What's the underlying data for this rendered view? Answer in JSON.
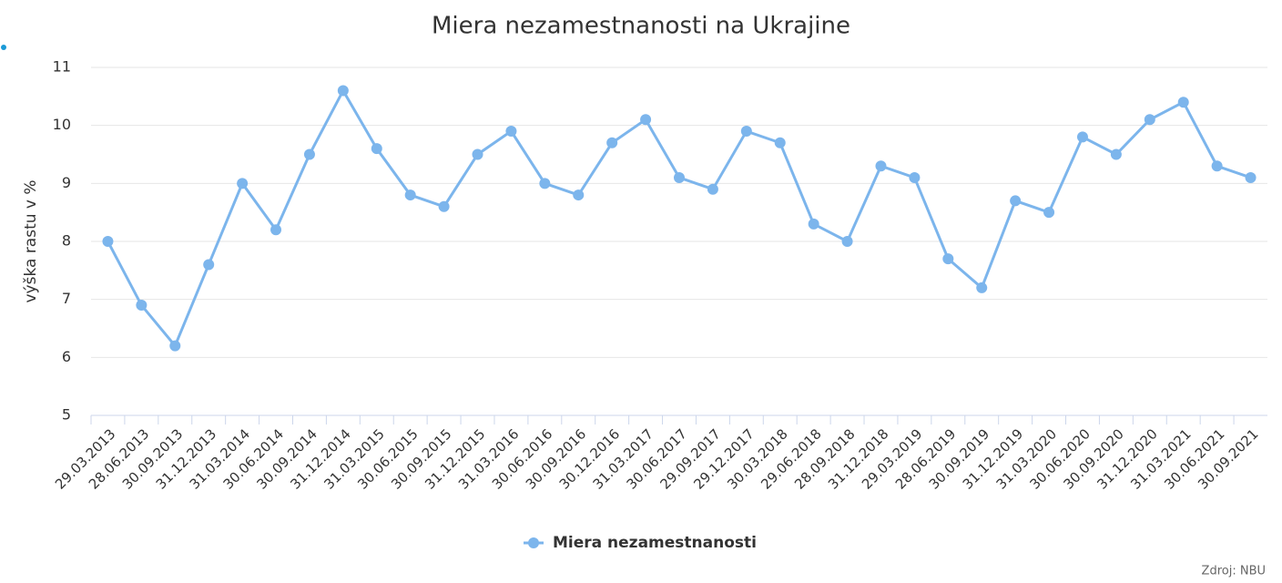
{
  "chart_data": {
    "type": "line",
    "title": "Miera nezamestnanosti na Ukrajine",
    "y_label": "výška rastu v %",
    "categories": [
      "29.03.2013",
      "28.06.2013",
      "30.09.2013",
      "31.12.2013",
      "31.03.2014",
      "30.06.2014",
      "30.09.2014",
      "31.12.2014",
      "31.03.2015",
      "30.06.2015",
      "30.09.2015",
      "31.12.2015",
      "31.03.2016",
      "30.06.2016",
      "30.09.2016",
      "30.12.2016",
      "31.03.2017",
      "30.06.2017",
      "29.09.2017",
      "29.12.2017",
      "30.03.2018",
      "29.06.2018",
      "28.09.2018",
      "31.12.2018",
      "29.03.2019",
      "28.06.2019",
      "30.09.2019",
      "31.12.2019",
      "31.03.2020",
      "30.06.2020",
      "30.09.2020",
      "31.12.2020",
      "31.03.2021",
      "30.06.2021",
      "30.09.2021"
    ],
    "series": [
      {
        "name": "Miera nezamestnanosti",
        "color": "#7cb5ec",
        "values": [
          8.0,
          6.9,
          6.2,
          7.6,
          9.0,
          8.2,
          9.5,
          10.6,
          9.6,
          8.8,
          8.6,
          9.5,
          9.9,
          9.0,
          8.8,
          9.7,
          10.1,
          9.1,
          8.9,
          9.9,
          9.7,
          8.3,
          8.0,
          9.3,
          9.1,
          7.7,
          7.2,
          8.7,
          8.5,
          9.8,
          9.5,
          10.1,
          10.4,
          9.3,
          9.1
        ]
      }
    ],
    "ylim": [
      5,
      11
    ],
    "yticks": [
      5,
      6,
      7,
      8,
      9,
      10,
      11
    ],
    "grid": true,
    "legend": "bottom",
    "source": "Zdroj: NBU"
  }
}
